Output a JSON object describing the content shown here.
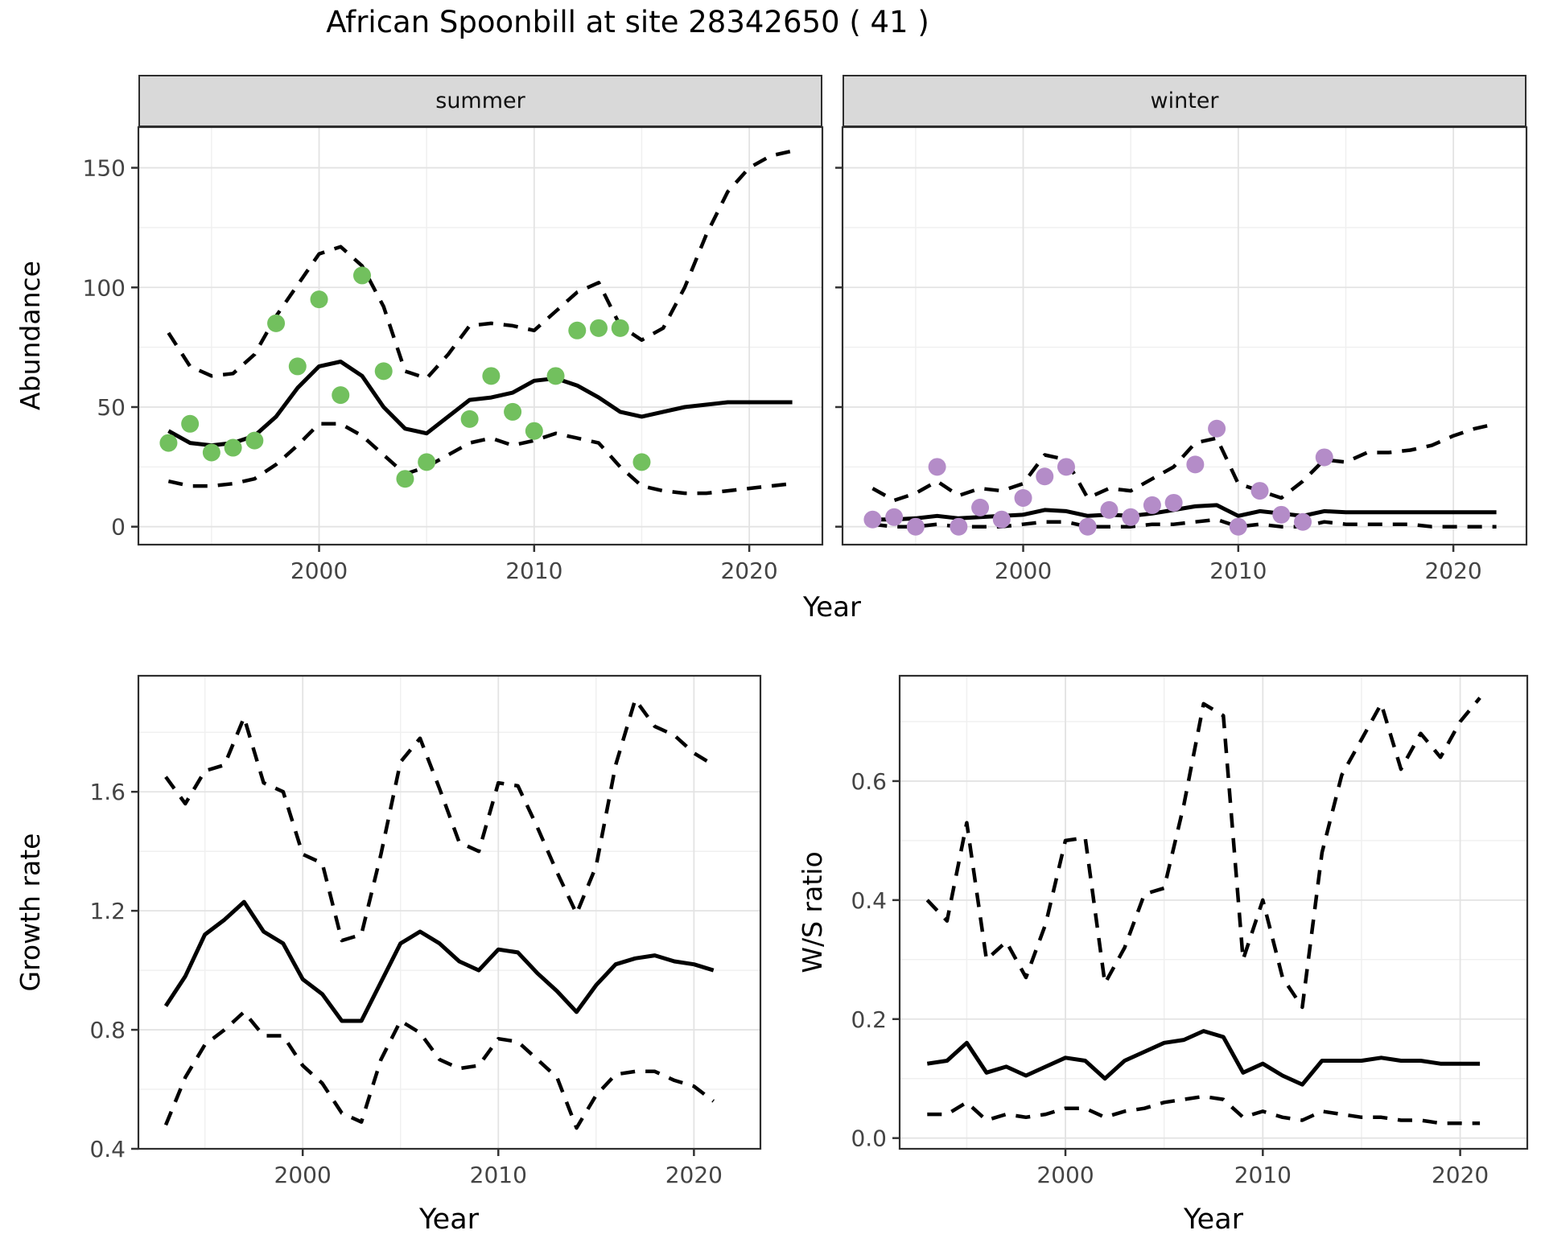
{
  "title": "African Spoonbill at site 28342650 ( 41 )",
  "colors": {
    "summer_point": "#72c05e",
    "winter_point": "#b48cc8",
    "line": "#000000",
    "strip_bg": "#d9d9d9",
    "panel_border": "#2e2e2e",
    "grid_major": "#e3e3e3",
    "grid_minor": "#f0f0f0",
    "tick_label": "#444444"
  },
  "chart_data": [
    {
      "name": "abundance-summer",
      "type": "line",
      "facet_label": "summer",
      "x": {
        "label": "Year",
        "domain": [
          1991.6,
          2023.4
        ],
        "major": [
          2000,
          2010,
          2020
        ],
        "major_labels": [
          "2000",
          "2010",
          "2020"
        ],
        "minor": [
          1995,
          2005,
          2015
        ]
      },
      "y": {
        "label": "Abundance",
        "domain": [
          -7.5,
          167
        ],
        "major": [
          0,
          50,
          100,
          150
        ],
        "major_labels": [
          "0",
          "50",
          "100",
          "150"
        ],
        "minor": [
          25,
          75,
          125
        ]
      },
      "series": [
        {
          "name": "upper-ci",
          "style": "dashed",
          "start_year": 1993,
          "values": [
            81,
            67,
            63,
            64,
            72,
            88,
            101,
            114,
            117,
            109,
            92,
            65,
            62,
            72,
            84,
            85,
            84,
            82,
            90,
            98,
            102,
            84,
            78,
            83,
            100,
            122,
            140,
            150,
            155,
            157
          ]
        },
        {
          "name": "lower-ci",
          "style": "dashed",
          "start_year": 1993,
          "values": [
            19,
            17,
            17,
            18,
            20,
            26,
            34,
            43,
            43,
            38,
            30,
            22,
            25,
            30,
            35,
            37,
            34,
            36,
            39,
            37,
            35,
            25,
            17,
            15,
            14,
            14,
            15,
            16,
            17,
            18
          ]
        },
        {
          "name": "median",
          "style": "solid",
          "start_year": 1993,
          "values": [
            40,
            35,
            34,
            35,
            38,
            46,
            58,
            67,
            69,
            63,
            50,
            41,
            39,
            46,
            53,
            54,
            56,
            61,
            62,
            59,
            54,
            48,
            46,
            48,
            50,
            51,
            52,
            52,
            52,
            52
          ]
        }
      ],
      "points": {
        "color": "#72c05e",
        "years": [
          1993,
          1994,
          1995,
          1996,
          1997,
          1998,
          1999,
          2000,
          2001,
          2002,
          2003,
          2004,
          2005,
          2007,
          2008,
          2009,
          2010,
          2011,
          2012,
          2013,
          2014,
          2015
        ],
        "values": [
          35,
          43,
          31,
          33,
          36,
          85,
          67,
          95,
          55,
          105,
          65,
          20,
          27,
          45,
          63,
          48,
          40,
          63,
          82,
          83,
          83,
          27
        ]
      }
    },
    {
      "name": "abundance-winter",
      "type": "line",
      "facet_label": "winter",
      "x": {
        "label": "Year",
        "domain": [
          1991.6,
          2023.4
        ],
        "major": [
          2000,
          2010,
          2020
        ],
        "major_labels": [
          "2000",
          "2010",
          "2020"
        ],
        "minor": [
          1995,
          2005,
          2015
        ]
      },
      "y": {
        "label": "Abundance",
        "domain": [
          -7.5,
          167
        ],
        "major": [
          0,
          50,
          100,
          150
        ],
        "major_labels": [
          "0",
          "50",
          "100",
          "150"
        ],
        "minor": [
          25,
          75,
          125
        ]
      },
      "series": [
        {
          "name": "upper-ci",
          "style": "dashed",
          "start_year": 1993,
          "values": [
            16,
            11,
            14,
            19,
            13,
            16,
            15,
            18,
            30,
            28,
            12,
            16,
            15,
            20,
            25,
            35,
            37,
            18,
            15,
            12,
            19,
            28,
            27,
            31,
            31,
            32,
            34,
            38,
            41,
            43
          ]
        },
        {
          "name": "lower-ci",
          "style": "dashed",
          "start_year": 1993,
          "values": [
            1,
            0,
            0,
            1,
            0,
            0,
            0,
            1,
            2,
            2,
            0,
            0,
            0,
            1,
            1,
            2,
            3,
            0,
            1,
            0,
            0,
            2,
            1,
            1,
            1,
            1,
            0,
            0,
            0,
            0
          ]
        },
        {
          "name": "median",
          "style": "solid",
          "start_year": 1993,
          "values": [
            3,
            3,
            3.5,
            4.5,
            3.5,
            4,
            4.5,
            5,
            7,
            6.5,
            4.5,
            5,
            4.5,
            5.5,
            7,
            8.5,
            9,
            4.5,
            6.5,
            5.5,
            4.5,
            6.5,
            6,
            6,
            6,
            6,
            6,
            6,
            6,
            6
          ]
        }
      ],
      "points": {
        "color": "#b48cc8",
        "years": [
          1993,
          1994,
          1995,
          1996,
          1997,
          1998,
          1999,
          2000,
          2001,
          2002,
          2003,
          2004,
          2005,
          2006,
          2007,
          2008,
          2009,
          2010,
          2011,
          2012,
          2013,
          2014
        ],
        "values": [
          3,
          4,
          0,
          25,
          0,
          8,
          3,
          12,
          21,
          25,
          0,
          7,
          4,
          9,
          10,
          26,
          41,
          0,
          15,
          5,
          2,
          29
        ]
      }
    },
    {
      "name": "growth-rate",
      "type": "line",
      "facet_label": null,
      "x": {
        "label": "Year",
        "domain": [
          1991.6,
          2023.4
        ],
        "major": [
          2000,
          2010,
          2020
        ],
        "major_labels": [
          "2000",
          "2010",
          "2020"
        ],
        "minor": [
          1995,
          2005,
          2015
        ]
      },
      "y": {
        "label": "Growth rate",
        "domain": [
          0.4,
          1.99
        ],
        "major": [
          0.4,
          0.8,
          1.2,
          1.6
        ],
        "major_labels": [
          "0.4",
          "0.8",
          "1.2",
          "1.6"
        ],
        "minor": [
          0.6,
          1.0,
          1.4,
          1.8
        ]
      },
      "series": [
        {
          "name": "upper-ci",
          "style": "dashed",
          "start_year": 1993,
          "values": [
            1.65,
            1.56,
            1.67,
            1.69,
            1.85,
            1.63,
            1.6,
            1.39,
            1.36,
            1.1,
            1.12,
            1.39,
            1.7,
            1.78,
            1.61,
            1.43,
            1.4,
            1.63,
            1.62,
            1.48,
            1.33,
            1.19,
            1.35,
            1.69,
            1.91,
            1.82,
            1.79,
            1.73,
            1.69
          ]
        },
        {
          "name": "lower-ci",
          "style": "dashed",
          "start_year": 1993,
          "values": [
            0.48,
            0.64,
            0.75,
            0.8,
            0.86,
            0.78,
            0.78,
            0.68,
            0.62,
            0.52,
            0.49,
            0.7,
            0.83,
            0.79,
            0.7,
            0.67,
            0.68,
            0.77,
            0.76,
            0.7,
            0.64,
            0.47,
            0.58,
            0.65,
            0.66,
            0.66,
            0.63,
            0.61,
            0.56
          ]
        },
        {
          "name": "median",
          "style": "solid",
          "start_year": 1993,
          "values": [
            0.88,
            0.98,
            1.12,
            1.17,
            1.23,
            1.13,
            1.09,
            0.97,
            0.92,
            0.83,
            0.83,
            0.96,
            1.09,
            1.13,
            1.09,
            1.03,
            1.0,
            1.07,
            1.06,
            0.99,
            0.93,
            0.86,
            0.95,
            1.02,
            1.04,
            1.05,
            1.03,
            1.02,
            1.0
          ]
        }
      ],
      "points": null
    },
    {
      "name": "ws-ratio",
      "type": "line",
      "facet_label": null,
      "x": {
        "label": "Year",
        "domain": [
          1991.6,
          2023.4
        ],
        "major": [
          2000,
          2010,
          2020
        ],
        "major_labels": [
          "2000",
          "2010",
          "2020"
        ],
        "minor": [
          1995,
          2005,
          2015
        ]
      },
      "y": {
        "label": "W/S ratio",
        "domain": [
          -0.018,
          0.777
        ],
        "major": [
          0.0,
          0.2,
          0.4,
          0.6
        ],
        "major_labels": [
          "0.0",
          "0.2",
          "0.4",
          "0.6"
        ],
        "minor": [
          0.1,
          0.3,
          0.5,
          0.7
        ]
      },
      "series": [
        {
          "name": "upper-ci",
          "style": "dashed",
          "start_year": 1993,
          "values": [
            0.4,
            0.365,
            0.53,
            0.3,
            0.33,
            0.27,
            0.36,
            0.5,
            0.505,
            0.26,
            0.32,
            0.41,
            0.42,
            0.56,
            0.73,
            0.71,
            0.3,
            0.4,
            0.27,
            0.22,
            0.48,
            0.61,
            0.67,
            0.73,
            0.62,
            0.68,
            0.64,
            0.7,
            0.74
          ]
        },
        {
          "name": "lower-ci",
          "style": "dashed",
          "start_year": 1993,
          "values": [
            0.04,
            0.04,
            0.06,
            0.03,
            0.04,
            0.035,
            0.04,
            0.05,
            0.05,
            0.035,
            0.045,
            0.05,
            0.06,
            0.065,
            0.07,
            0.065,
            0.035,
            0.045,
            0.035,
            0.03,
            0.045,
            0.04,
            0.035,
            0.035,
            0.03,
            0.03,
            0.025,
            0.025,
            0.025
          ]
        },
        {
          "name": "median",
          "style": "solid",
          "start_year": 1993,
          "values": [
            0.125,
            0.13,
            0.16,
            0.11,
            0.12,
            0.105,
            0.12,
            0.135,
            0.13,
            0.1,
            0.13,
            0.145,
            0.16,
            0.165,
            0.18,
            0.17,
            0.11,
            0.125,
            0.105,
            0.09,
            0.13,
            0.13,
            0.13,
            0.135,
            0.13,
            0.13,
            0.125,
            0.125,
            0.125
          ]
        }
      ],
      "points": null
    }
  ]
}
